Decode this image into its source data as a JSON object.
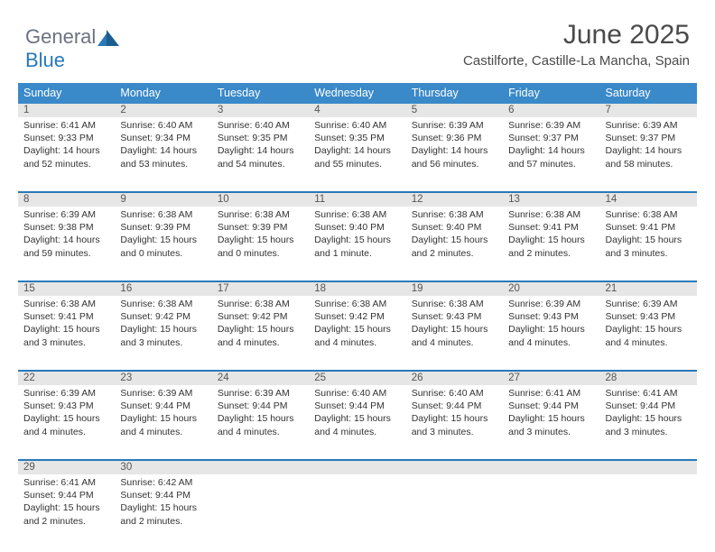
{
  "logo": {
    "text1": "General",
    "text2": "Blue"
  },
  "title": "June 2025",
  "location": "Castilforte, Castille-La Mancha, Spain",
  "columns": [
    "Sunday",
    "Monday",
    "Tuesday",
    "Wednesday",
    "Thursday",
    "Friday",
    "Saturday"
  ],
  "colors": {
    "header_bg": "#3a89c9",
    "separator": "#2879b9",
    "daynum_bg": "#e6e6e6"
  },
  "weeks": [
    [
      {
        "n": "1",
        "sunrise": "6:41 AM",
        "sunset": "9:33 PM",
        "day": "14 hours and 52 minutes."
      },
      {
        "n": "2",
        "sunrise": "6:40 AM",
        "sunset": "9:34 PM",
        "day": "14 hours and 53 minutes."
      },
      {
        "n": "3",
        "sunrise": "6:40 AM",
        "sunset": "9:35 PM",
        "day": "14 hours and 54 minutes."
      },
      {
        "n": "4",
        "sunrise": "6:40 AM",
        "sunset": "9:35 PM",
        "day": "14 hours and 55 minutes."
      },
      {
        "n": "5",
        "sunrise": "6:39 AM",
        "sunset": "9:36 PM",
        "day": "14 hours and 56 minutes."
      },
      {
        "n": "6",
        "sunrise": "6:39 AM",
        "sunset": "9:37 PM",
        "day": "14 hours and 57 minutes."
      },
      {
        "n": "7",
        "sunrise": "6:39 AM",
        "sunset": "9:37 PM",
        "day": "14 hours and 58 minutes."
      }
    ],
    [
      {
        "n": "8",
        "sunrise": "6:39 AM",
        "sunset": "9:38 PM",
        "day": "14 hours and 59 minutes."
      },
      {
        "n": "9",
        "sunrise": "6:38 AM",
        "sunset": "9:39 PM",
        "day": "15 hours and 0 minutes."
      },
      {
        "n": "10",
        "sunrise": "6:38 AM",
        "sunset": "9:39 PM",
        "day": "15 hours and 0 minutes."
      },
      {
        "n": "11",
        "sunrise": "6:38 AM",
        "sunset": "9:40 PM",
        "day": "15 hours and 1 minute."
      },
      {
        "n": "12",
        "sunrise": "6:38 AM",
        "sunset": "9:40 PM",
        "day": "15 hours and 2 minutes."
      },
      {
        "n": "13",
        "sunrise": "6:38 AM",
        "sunset": "9:41 PM",
        "day": "15 hours and 2 minutes."
      },
      {
        "n": "14",
        "sunrise": "6:38 AM",
        "sunset": "9:41 PM",
        "day": "15 hours and 3 minutes."
      }
    ],
    [
      {
        "n": "15",
        "sunrise": "6:38 AM",
        "sunset": "9:41 PM",
        "day": "15 hours and 3 minutes."
      },
      {
        "n": "16",
        "sunrise": "6:38 AM",
        "sunset": "9:42 PM",
        "day": "15 hours and 3 minutes."
      },
      {
        "n": "17",
        "sunrise": "6:38 AM",
        "sunset": "9:42 PM",
        "day": "15 hours and 4 minutes."
      },
      {
        "n": "18",
        "sunrise": "6:38 AM",
        "sunset": "9:42 PM",
        "day": "15 hours and 4 minutes."
      },
      {
        "n": "19",
        "sunrise": "6:38 AM",
        "sunset": "9:43 PM",
        "day": "15 hours and 4 minutes."
      },
      {
        "n": "20",
        "sunrise": "6:39 AM",
        "sunset": "9:43 PM",
        "day": "15 hours and 4 minutes."
      },
      {
        "n": "21",
        "sunrise": "6:39 AM",
        "sunset": "9:43 PM",
        "day": "15 hours and 4 minutes."
      }
    ],
    [
      {
        "n": "22",
        "sunrise": "6:39 AM",
        "sunset": "9:43 PM",
        "day": "15 hours and 4 minutes."
      },
      {
        "n": "23",
        "sunrise": "6:39 AM",
        "sunset": "9:44 PM",
        "day": "15 hours and 4 minutes."
      },
      {
        "n": "24",
        "sunrise": "6:39 AM",
        "sunset": "9:44 PM",
        "day": "15 hours and 4 minutes."
      },
      {
        "n": "25",
        "sunrise": "6:40 AM",
        "sunset": "9:44 PM",
        "day": "15 hours and 4 minutes."
      },
      {
        "n": "26",
        "sunrise": "6:40 AM",
        "sunset": "9:44 PM",
        "day": "15 hours and 3 minutes."
      },
      {
        "n": "27",
        "sunrise": "6:41 AM",
        "sunset": "9:44 PM",
        "day": "15 hours and 3 minutes."
      },
      {
        "n": "28",
        "sunrise": "6:41 AM",
        "sunset": "9:44 PM",
        "day": "15 hours and 3 minutes."
      }
    ],
    [
      {
        "n": "29",
        "sunrise": "6:41 AM",
        "sunset": "9:44 PM",
        "day": "15 hours and 2 minutes."
      },
      {
        "n": "30",
        "sunrise": "6:42 AM",
        "sunset": "9:44 PM",
        "day": "15 hours and 2 minutes."
      },
      null,
      null,
      null,
      null,
      null
    ]
  ],
  "labels": {
    "sunrise": "Sunrise: ",
    "sunset": "Sunset: ",
    "daylight": "Daylight: "
  }
}
